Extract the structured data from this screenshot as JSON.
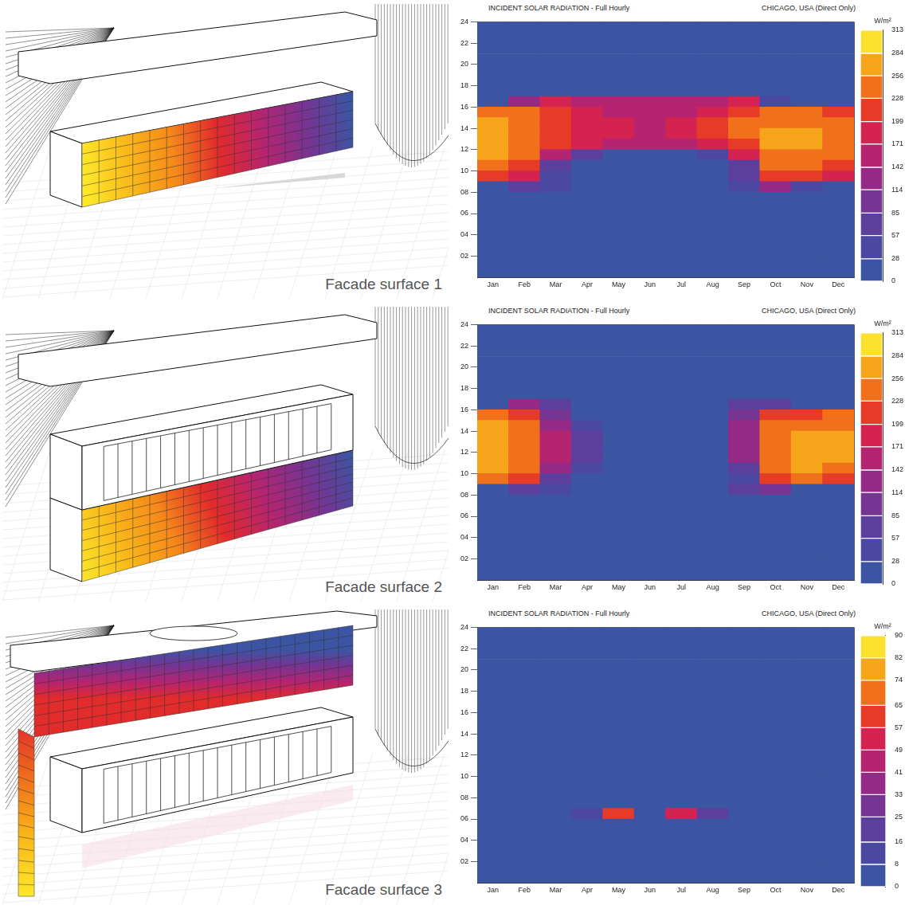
{
  "figures": [
    {
      "caption": "Facade surface 1"
    },
    {
      "caption": "Facade surface 2"
    },
    {
      "caption": "Facade surface 3"
    }
  ],
  "chart_data": [
    {
      "type": "heatmap",
      "title": "INCIDENT SOLAR RADIATION - Full Hourly",
      "subtitle": "CHICAGO, USA (Direct Only)",
      "categories": [
        "Jan",
        "Feb",
        "Mar",
        "Apr",
        "May",
        "Jun",
        "Jul",
        "Aug",
        "Sep",
        "Oct",
        "Nov",
        "Dec"
      ],
      "y_bins": [
        0,
        1,
        2,
        3,
        4,
        5,
        6,
        7,
        8,
        9,
        10,
        11,
        12,
        13,
        14,
        15,
        16,
        17,
        18,
        19,
        20,
        21,
        22,
        23,
        24
      ],
      "ylim": [
        0,
        24
      ],
      "yticks": [
        {
          "value": 2,
          "label": "02"
        },
        {
          "value": 4,
          "label": "04"
        },
        {
          "value": 6,
          "label": "06"
        },
        {
          "value": 8,
          "label": "08"
        },
        10,
        12,
        14,
        16,
        18,
        20,
        22,
        24
      ],
      "grid": true,
      "cells": [
        [
          0,
          0,
          0,
          0,
          0,
          0,
          0,
          0,
          0,
          0,
          0,
          0
        ],
        [
          0,
          0,
          0,
          0,
          0,
          0,
          0,
          0,
          0,
          0,
          0,
          0
        ],
        [
          0,
          0,
          0,
          0,
          0,
          0,
          0,
          0,
          0,
          0,
          0,
          0
        ],
        [
          0,
          0,
          0,
          0,
          0,
          0,
          0,
          0,
          0,
          0,
          0,
          0
        ],
        [
          0,
          0,
          0,
          0,
          0,
          0,
          0,
          0,
          0,
          0,
          0,
          0
        ],
        [
          0,
          0,
          0,
          0,
          0,
          0,
          0,
          0,
          0,
          0,
          0,
          0
        ],
        [
          0,
          0,
          0,
          0,
          0,
          0,
          0,
          0,
          0,
          0,
          0,
          0
        ],
        [
          0,
          0,
          0,
          0,
          0,
          0,
          0,
          0,
          0,
          0,
          0,
          0
        ],
        [
          0,
          60,
          40,
          0,
          0,
          0,
          0,
          0,
          30,
          120,
          40,
          0
        ],
        [
          200,
          180,
          40,
          0,
          0,
          0,
          0,
          0,
          60,
          200,
          220,
          180
        ],
        [
          240,
          220,
          60,
          0,
          0,
          0,
          0,
          0,
          80,
          230,
          240,
          220
        ],
        [
          260,
          240,
          150,
          60,
          0,
          0,
          0,
          40,
          180,
          250,
          250,
          240
        ],
        [
          270,
          250,
          200,
          180,
          170,
          160,
          170,
          190,
          220,
          260,
          260,
          250
        ],
        [
          270,
          250,
          210,
          190,
          180,
          170,
          180,
          200,
          230,
          260,
          260,
          250
        ],
        [
          260,
          240,
          210,
          190,
          180,
          170,
          180,
          200,
          230,
          250,
          250,
          240
        ],
        [
          240,
          230,
          200,
          180,
          170,
          160,
          170,
          190,
          210,
          230,
          230,
          220
        ],
        [
          0,
          140,
          190,
          170,
          160,
          160,
          160,
          170,
          180,
          40,
          0,
          0
        ],
        [
          0,
          0,
          0,
          0,
          0,
          0,
          0,
          0,
          0,
          0,
          0,
          0
        ],
        [
          0,
          0,
          0,
          0,
          0,
          0,
          0,
          0,
          0,
          0,
          0,
          0
        ],
        [
          0,
          0,
          0,
          0,
          0,
          0,
          0,
          0,
          0,
          0,
          0,
          0
        ],
        [
          0,
          0,
          0,
          0,
          0,
          0,
          0,
          0,
          0,
          0,
          0,
          0
        ],
        [
          0,
          0,
          0,
          0,
          0,
          0,
          0,
          0,
          0,
          0,
          0,
          0
        ],
        [
          0,
          0,
          0,
          0,
          0,
          0,
          0,
          0,
          0,
          0,
          0,
          0
        ],
        [
          0,
          0,
          0,
          0,
          0,
          0,
          0,
          0,
          0,
          0,
          0,
          0
        ]
      ],
      "colorbar": {
        "label": "W/m²",
        "range": [
          0,
          313
        ],
        "ticks": [
          0,
          28,
          57,
          85,
          114,
          142,
          171,
          199,
          228,
          256,
          284,
          313
        ]
      }
    },
    {
      "type": "heatmap",
      "title": "INCIDENT SOLAR RADIATION - Full Hourly",
      "subtitle": "CHICAGO, USA (Direct Only)",
      "categories": [
        "Jan",
        "Feb",
        "Mar",
        "Apr",
        "May",
        "Jun",
        "Jul",
        "Aug",
        "Sep",
        "Oct",
        "Nov",
        "Dec"
      ],
      "y_bins": [
        0,
        1,
        2,
        3,
        4,
        5,
        6,
        7,
        8,
        9,
        10,
        11,
        12,
        13,
        14,
        15,
        16,
        17,
        18,
        19,
        20,
        21,
        22,
        23,
        24
      ],
      "ylim": [
        0,
        24
      ],
      "yticks": [
        {
          "value": 2,
          "label": "02"
        },
        {
          "value": 4,
          "label": "04"
        },
        {
          "value": 6,
          "label": "06"
        },
        {
          "value": 8,
          "label": "08"
        },
        10,
        12,
        14,
        16,
        18,
        20,
        22,
        24
      ],
      "grid": true,
      "cells": [
        [
          0,
          0,
          0,
          0,
          0,
          0,
          0,
          0,
          0,
          0,
          0,
          0
        ],
        [
          0,
          0,
          0,
          0,
          0,
          0,
          0,
          0,
          0,
          0,
          0,
          0
        ],
        [
          0,
          0,
          0,
          0,
          0,
          0,
          0,
          0,
          0,
          0,
          0,
          0
        ],
        [
          0,
          0,
          0,
          0,
          0,
          0,
          0,
          0,
          0,
          0,
          0,
          0
        ],
        [
          0,
          0,
          0,
          0,
          0,
          0,
          0,
          0,
          0,
          0,
          0,
          0
        ],
        [
          0,
          0,
          0,
          0,
          0,
          0,
          0,
          0,
          0,
          0,
          0,
          0
        ],
        [
          0,
          0,
          0,
          0,
          0,
          0,
          0,
          0,
          0,
          0,
          0,
          0
        ],
        [
          0,
          0,
          0,
          0,
          0,
          0,
          0,
          0,
          0,
          0,
          0,
          0
        ],
        [
          0,
          60,
          30,
          0,
          0,
          0,
          0,
          0,
          60,
          100,
          0,
          0
        ],
        [
          230,
          200,
          80,
          0,
          0,
          0,
          0,
          0,
          40,
          200,
          240,
          220
        ],
        [
          260,
          230,
          120,
          40,
          0,
          0,
          0,
          0,
          80,
          230,
          260,
          250
        ],
        [
          270,
          240,
          150,
          60,
          0,
          0,
          0,
          0,
          120,
          250,
          270,
          260
        ],
        [
          270,
          240,
          160,
          70,
          0,
          0,
          0,
          0,
          140,
          250,
          270,
          260
        ],
        [
          270,
          240,
          160,
          70,
          0,
          0,
          0,
          0,
          140,
          240,
          260,
          260
        ],
        [
          260,
          230,
          140,
          50,
          0,
          0,
          0,
          0,
          130,
          230,
          250,
          250
        ],
        [
          240,
          200,
          100,
          20,
          0,
          0,
          0,
          0,
          100,
          210,
          220,
          230
        ],
        [
          0,
          120,
          60,
          0,
          0,
          0,
          0,
          0,
          60,
          60,
          0,
          0
        ],
        [
          0,
          0,
          0,
          0,
          0,
          0,
          0,
          0,
          0,
          0,
          0,
          0
        ],
        [
          0,
          0,
          0,
          0,
          0,
          0,
          0,
          0,
          0,
          0,
          0,
          0
        ],
        [
          0,
          0,
          0,
          0,
          0,
          0,
          0,
          0,
          0,
          0,
          0,
          0
        ],
        [
          0,
          0,
          0,
          0,
          0,
          0,
          0,
          0,
          0,
          0,
          0,
          0
        ],
        [
          0,
          0,
          0,
          0,
          0,
          0,
          0,
          0,
          0,
          0,
          0,
          0
        ],
        [
          0,
          0,
          0,
          0,
          0,
          0,
          0,
          0,
          0,
          0,
          0,
          0
        ],
        [
          0,
          0,
          0,
          0,
          0,
          0,
          0,
          0,
          0,
          0,
          0,
          0
        ]
      ],
      "colorbar": {
        "label": "W/m²",
        "range": [
          0,
          313
        ],
        "ticks": [
          0,
          28,
          57,
          85,
          114,
          142,
          171,
          199,
          228,
          256,
          284,
          313
        ]
      }
    },
    {
      "type": "heatmap",
      "title": "INCIDENT SOLAR RADIATION - Full Hourly",
      "subtitle": "CHICAGO, USA (Direct Only)",
      "categories": [
        "Jan",
        "Feb",
        "Mar",
        "Apr",
        "May",
        "Jun",
        "Jul",
        "Aug",
        "Sep",
        "Oct",
        "Nov",
        "Dec"
      ],
      "y_bins": [
        0,
        1,
        2,
        3,
        4,
        5,
        6,
        7,
        8,
        9,
        10,
        11,
        12,
        13,
        14,
        15,
        16,
        17,
        18,
        19,
        20,
        21,
        22,
        23,
        24
      ],
      "ylim": [
        0,
        24
      ],
      "yticks": [
        {
          "value": 2,
          "label": "02"
        },
        {
          "value": 4,
          "label": "04"
        },
        {
          "value": 6,
          "label": "06"
        },
        {
          "value": 8,
          "label": "08"
        },
        10,
        12,
        14,
        16,
        18,
        20,
        22,
        24
      ],
      "grid": true,
      "cells": [
        [
          0,
          0,
          0,
          0,
          0,
          0,
          0,
          0,
          0,
          0,
          0,
          0
        ],
        [
          0,
          0,
          0,
          0,
          0,
          0,
          0,
          0,
          0,
          0,
          0,
          0
        ],
        [
          0,
          0,
          0,
          0,
          0,
          0,
          0,
          0,
          0,
          0,
          0,
          0
        ],
        [
          0,
          0,
          0,
          0,
          0,
          0,
          0,
          0,
          0,
          0,
          0,
          0
        ],
        [
          0,
          0,
          0,
          0,
          0,
          0,
          0,
          0,
          0,
          0,
          0,
          0
        ],
        [
          0,
          0,
          0,
          0,
          0,
          0,
          0,
          0,
          0,
          0,
          0,
          0
        ],
        [
          0,
          0,
          0,
          15,
          60,
          5,
          50,
          20,
          5,
          0,
          0,
          0
        ],
        [
          0,
          0,
          0,
          5,
          0,
          0,
          0,
          5,
          5,
          0,
          0,
          0
        ],
        [
          0,
          0,
          0,
          0,
          0,
          0,
          0,
          0,
          0,
          0,
          0,
          0
        ],
        [
          0,
          0,
          0,
          0,
          0,
          0,
          0,
          0,
          0,
          0,
          0,
          0
        ],
        [
          0,
          0,
          0,
          0,
          0,
          0,
          0,
          0,
          0,
          0,
          0,
          0
        ],
        [
          0,
          0,
          0,
          0,
          0,
          0,
          0,
          0,
          0,
          0,
          0,
          0
        ],
        [
          0,
          0,
          0,
          0,
          0,
          0,
          0,
          0,
          0,
          0,
          0,
          0
        ],
        [
          0,
          0,
          0,
          0,
          0,
          0,
          0,
          0,
          0,
          0,
          0,
          0
        ],
        [
          0,
          0,
          0,
          0,
          0,
          0,
          0,
          0,
          0,
          0,
          0,
          0
        ],
        [
          0,
          0,
          0,
          0,
          0,
          0,
          0,
          0,
          0,
          0,
          0,
          0
        ],
        [
          0,
          0,
          0,
          0,
          0,
          0,
          0,
          0,
          0,
          0,
          0,
          0
        ],
        [
          0,
          0,
          0,
          0,
          0,
          0,
          0,
          0,
          0,
          0,
          0,
          0
        ],
        [
          0,
          0,
          0,
          0,
          0,
          0,
          0,
          0,
          0,
          0,
          0,
          0
        ],
        [
          0,
          0,
          0,
          0,
          0,
          0,
          0,
          0,
          0,
          0,
          0,
          0
        ],
        [
          0,
          0,
          0,
          0,
          0,
          0,
          0,
          0,
          0,
          0,
          0,
          0
        ],
        [
          0,
          0,
          0,
          0,
          0,
          0,
          0,
          0,
          0,
          0,
          0,
          0
        ],
        [
          0,
          0,
          0,
          0,
          0,
          0,
          0,
          0,
          0,
          0,
          0,
          0
        ],
        [
          0,
          0,
          0,
          0,
          0,
          0,
          0,
          0,
          0,
          0,
          0,
          0
        ]
      ],
      "colorbar": {
        "label": "W/m²",
        "range": [
          0,
          90
        ],
        "ticks": [
          0,
          8,
          16,
          25,
          33,
          41,
          49,
          57,
          65,
          74,
          82,
          90
        ]
      }
    }
  ]
}
